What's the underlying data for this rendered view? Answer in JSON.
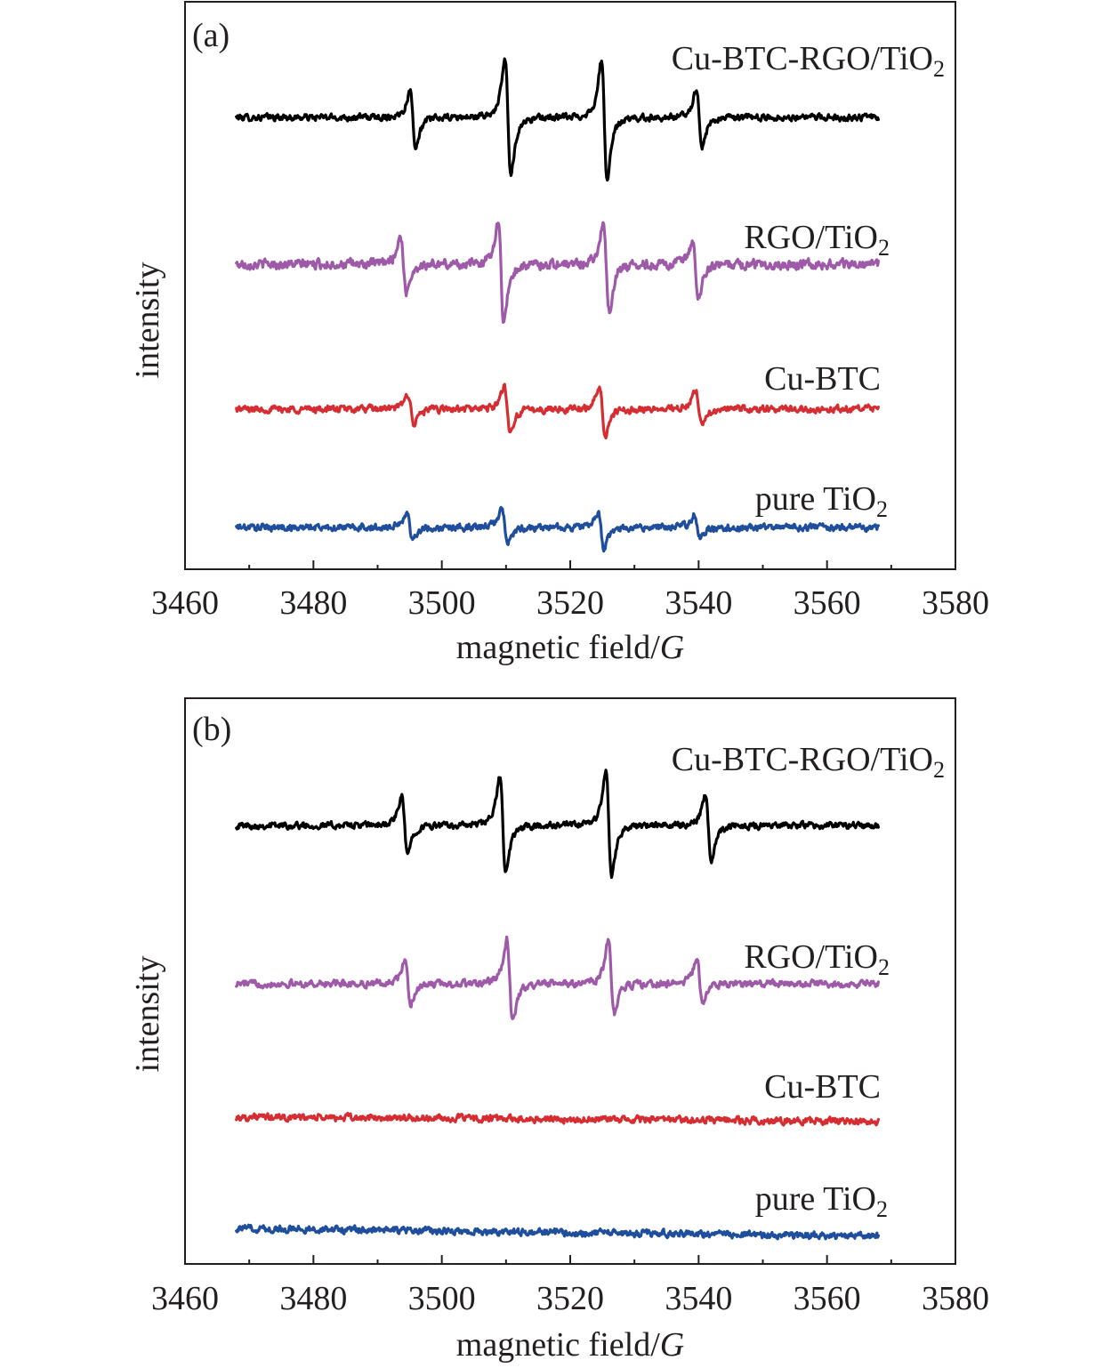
{
  "chart_data": [
    {
      "type": "line",
      "panel_label": "(a)",
      "xlabel": "magnetic field/",
      "xlabel_italic": "G",
      "ylabel": "intensity",
      "xlim": [
        3460,
        3580
      ],
      "xticks": [
        3460,
        3480,
        3500,
        3520,
        3540,
        3560,
        3580
      ],
      "x_range": [
        3468,
        3568
      ],
      "y_ticks_shown": false,
      "legend": "inline labels at right of each trace",
      "series": [
        {
          "name": "Cu-BTC-RGO/TiO",
          "name_sub": "2",
          "color": "#000000",
          "baseline": 0.3,
          "noise": 0.028,
          "peaks": [
            {
              "x": 3495.5,
              "up": 0.32,
              "down": 0.36
            },
            {
              "x": 3510.3,
              "up": 0.7,
              "down": 0.7
            },
            {
              "x": 3525.3,
              "up": 0.68,
              "down": 0.76
            },
            {
              "x": 3540.1,
              "up": 0.34,
              "down": 0.36
            }
          ]
        },
        {
          "name": "RGO/TiO",
          "name_sub": "2",
          "color": "#9e5aa8",
          "baseline": 0.0,
          "noise": 0.04,
          "peaks": [
            {
              "x": 3494.0,
              "up": 0.34,
              "down": 0.34
            },
            {
              "x": 3509.2,
              "up": 0.5,
              "down": 0.7
            },
            {
              "x": 3525.6,
              "up": 0.5,
              "down": 0.58
            },
            {
              "x": 3539.5,
              "up": 0.24,
              "down": 0.46
            }
          ]
        },
        {
          "name": "Cu-BTC",
          "name_sub": "",
          "color": "#d62d32",
          "baseline": -0.35,
          "noise": 0.03,
          "peaks": [
            {
              "x": 3495.2,
              "up": 0.18,
              "down": 0.18
            },
            {
              "x": 3510.2,
              "up": 0.28,
              "down": 0.28
            },
            {
              "x": 3525.0,
              "up": 0.26,
              "down": 0.32
            },
            {
              "x": 3540.0,
              "up": 0.22,
              "down": 0.18
            }
          ]
        },
        {
          "name": "pure TiO",
          "name_sub": "2",
          "color": "#1f4e9d",
          "baseline": -0.62,
          "noise": 0.03,
          "peaks": [
            {
              "x": 3495.0,
              "up": 0.18,
              "down": 0.14
            },
            {
              "x": 3509.8,
              "up": 0.24,
              "down": 0.2
            },
            {
              "x": 3524.8,
              "up": 0.18,
              "down": 0.26
            },
            {
              "x": 3539.8,
              "up": 0.16,
              "down": 0.12
            }
          ]
        }
      ]
    },
    {
      "type": "line",
      "panel_label": "(b)",
      "xlabel": "magnetic field/",
      "xlabel_italic": "G",
      "ylabel": "intensity",
      "xlim": [
        3460,
        3580
      ],
      "xticks": [
        3460,
        3480,
        3500,
        3520,
        3540,
        3560,
        3580
      ],
      "x_range": [
        3468,
        3568
      ],
      "y_ticks_shown": false,
      "legend": "inline labels at right of each trace",
      "series": [
        {
          "name": "Cu-BTC-RGO/TiO",
          "name_sub": "2",
          "color": "#000000",
          "baseline": 0.3,
          "noise": 0.028,
          "peaks": [
            {
              "x": 3494.2,
              "up": 0.34,
              "down": 0.34
            },
            {
              "x": 3509.5,
              "up": 0.6,
              "down": 0.58
            },
            {
              "x": 3526.0,
              "up": 0.66,
              "down": 0.6
            },
            {
              "x": 3541.5,
              "up": 0.38,
              "down": 0.42
            }
          ]
        },
        {
          "name": "RGO/TiO",
          "name_sub": "2",
          "color": "#9e5aa8",
          "baseline": 0.0,
          "noise": 0.03,
          "peaks": [
            {
              "x": 3494.7,
              "up": 0.28,
              "down": 0.24
            },
            {
              "x": 3510.6,
              "up": 0.54,
              "down": 0.46
            },
            {
              "x": 3526.4,
              "up": 0.54,
              "down": 0.36
            },
            {
              "x": 3540.2,
              "up": 0.32,
              "down": 0.22
            }
          ]
        },
        {
          "name": "Cu-BTC",
          "name_sub": "",
          "color": "#d62d32",
          "baseline": -0.45,
          "noise": 0.03,
          "drift": -0.04,
          "peaks": []
        },
        {
          "name": "pure TiO",
          "name_sub": "2",
          "color": "#1f4e9d",
          "baseline": -0.72,
          "noise": 0.03,
          "drift": -0.08,
          "peaks": []
        }
      ]
    }
  ]
}
